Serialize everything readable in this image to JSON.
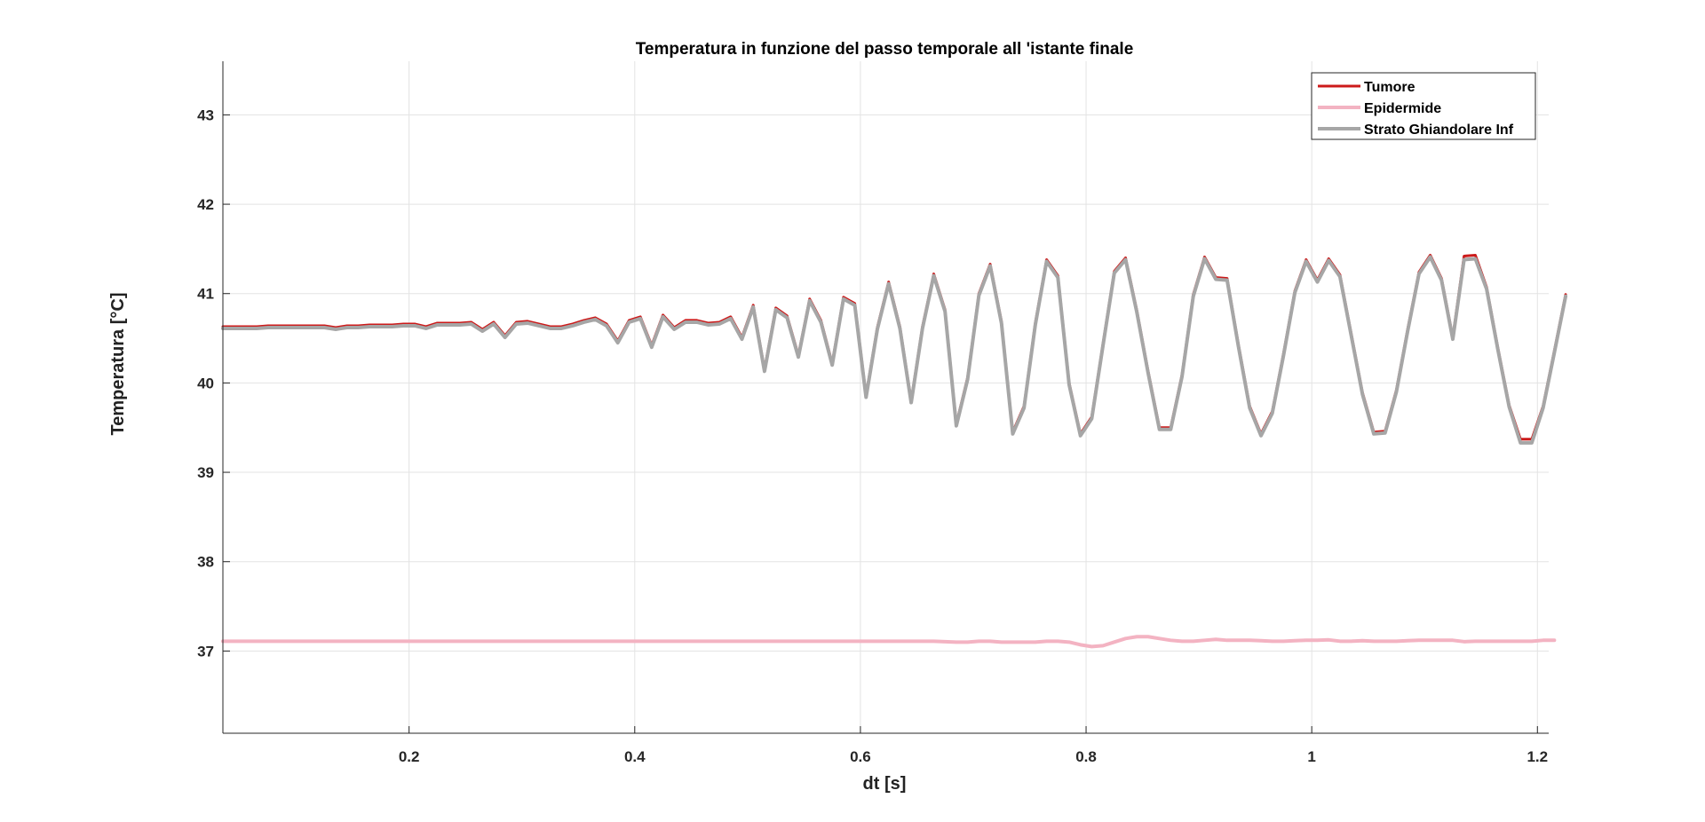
{
  "chart_data": {
    "type": "line",
    "title": "Temperatura in funzione del passo temporale all 'istante finale",
    "xlabel": "dt [s]",
    "ylabel": "Temperatura [°C]",
    "xlim": [
      0.035,
      1.21
    ],
    "ylim": [
      36.08,
      43.6
    ],
    "xticks": [
      0.2,
      0.4,
      0.6,
      0.8,
      1,
      1.2
    ],
    "xtick_labels": [
      "0.2",
      "0.4",
      "0.6",
      "0.8",
      "1",
      "1.2"
    ],
    "yticks": [
      37,
      38,
      39,
      40,
      41,
      42,
      43
    ],
    "ytick_labels": [
      "37",
      "38",
      "39",
      "40",
      "41",
      "42",
      "43"
    ],
    "grid": true,
    "legend_position": "top-right",
    "x_start": 0.035,
    "x_step": 0.01,
    "series": [
      {
        "name": "Tumore",
        "color": "#cc1a1a",
        "width": 3,
        "values": [
          40.63,
          40.63,
          40.63,
          40.63,
          40.64,
          40.64,
          40.64,
          40.64,
          40.64,
          40.64,
          40.62,
          40.64,
          40.64,
          40.65,
          40.65,
          40.65,
          40.66,
          40.66,
          40.63,
          40.67,
          40.67,
          40.67,
          40.68,
          40.6,
          40.68,
          40.53,
          40.68,
          40.69,
          40.66,
          40.63,
          40.63,
          40.66,
          40.7,
          40.73,
          40.66,
          40.47,
          40.7,
          40.74,
          40.42,
          40.76,
          40.62,
          40.7,
          40.7,
          40.67,
          40.68,
          40.74,
          40.51,
          40.87,
          40.15,
          40.84,
          40.75,
          40.31,
          40.94,
          40.7,
          40.22,
          40.96,
          40.89,
          39.86,
          40.62,
          41.13,
          40.63,
          39.8,
          40.63,
          41.22,
          40.82,
          39.54,
          40.06,
          41.0,
          41.33,
          40.69,
          39.45,
          39.74,
          40.67,
          41.38,
          41.2,
          40.0,
          39.43,
          39.62,
          40.44,
          41.25,
          41.4,
          40.81,
          40.13,
          39.5,
          39.5,
          40.09,
          40.99,
          41.41,
          41.18,
          41.17,
          40.43,
          39.74,
          39.43,
          39.68,
          40.33,
          41.03,
          41.38,
          41.15,
          41.39,
          41.21,
          40.55,
          39.89,
          39.45,
          39.46,
          39.92,
          40.6,
          41.24,
          41.43,
          41.17,
          40.51,
          41.42,
          41.43,
          41.07,
          40.39,
          39.75,
          39.37,
          39.37,
          39.74,
          40.36,
          40.99
        ]
      },
      {
        "name": "Epidermide",
        "color": "#f3b3c2",
        "width": 4,
        "values": [
          37.11,
          37.11,
          37.11,
          37.11,
          37.11,
          37.11,
          37.11,
          37.11,
          37.11,
          37.11,
          37.11,
          37.11,
          37.11,
          37.11,
          37.11,
          37.11,
          37.11,
          37.11,
          37.11,
          37.11,
          37.11,
          37.11,
          37.11,
          37.11,
          37.11,
          37.11,
          37.11,
          37.11,
          37.11,
          37.11,
          37.11,
          37.11,
          37.11,
          37.11,
          37.11,
          37.11,
          37.11,
          37.11,
          37.11,
          37.11,
          37.11,
          37.11,
          37.11,
          37.11,
          37.11,
          37.11,
          37.11,
          37.11,
          37.11,
          37.11,
          37.11,
          37.11,
          37.11,
          37.11,
          37.11,
          37.11,
          37.11,
          37.11,
          37.11,
          37.11,
          37.11,
          37.11,
          37.11,
          37.11,
          37.105,
          37.1,
          37.1,
          37.11,
          37.11,
          37.1,
          37.1,
          37.1,
          37.1,
          37.11,
          37.11,
          37.1,
          37.07,
          37.05,
          37.06,
          37.1,
          37.14,
          37.16,
          37.16,
          37.14,
          37.12,
          37.11,
          37.11,
          37.12,
          37.13,
          37.12,
          37.12,
          37.12,
          37.115,
          37.11,
          37.11,
          37.115,
          37.12,
          37.12,
          37.125,
          37.11,
          37.11,
          37.115,
          37.11,
          37.11,
          37.11,
          37.115,
          37.12,
          37.12,
          37.12,
          37.12,
          37.105,
          37.11,
          37.11,
          37.11,
          37.11,
          37.11,
          37.11,
          37.12,
          37.12
        ]
      },
      {
        "name": "Strato Ghiandolare Inf",
        "color": "#a6a6a6",
        "width": 4,
        "values": [
          40.61,
          40.61,
          40.61,
          40.61,
          40.62,
          40.62,
          40.62,
          40.62,
          40.62,
          40.62,
          40.6,
          40.62,
          40.62,
          40.63,
          40.63,
          40.63,
          40.64,
          40.64,
          40.61,
          40.65,
          40.65,
          40.65,
          40.66,
          40.58,
          40.66,
          40.51,
          40.66,
          40.67,
          40.64,
          40.61,
          40.61,
          40.64,
          40.68,
          40.71,
          40.64,
          40.45,
          40.68,
          40.72,
          40.4,
          40.74,
          40.6,
          40.68,
          40.68,
          40.65,
          40.66,
          40.72,
          40.49,
          40.85,
          40.13,
          40.82,
          40.73,
          40.29,
          40.92,
          40.68,
          40.2,
          40.94,
          40.87,
          39.84,
          40.6,
          41.11,
          40.61,
          39.78,
          40.61,
          41.2,
          40.8,
          39.52,
          40.04,
          40.98,
          41.31,
          40.67,
          39.43,
          39.72,
          40.65,
          41.36,
          41.18,
          39.98,
          39.41,
          39.6,
          40.42,
          41.23,
          41.38,
          40.79,
          40.11,
          39.48,
          39.48,
          40.07,
          40.97,
          41.39,
          41.16,
          41.15,
          40.41,
          39.72,
          39.41,
          39.66,
          40.31,
          41.01,
          41.36,
          41.13,
          41.37,
          41.19,
          40.53,
          39.87,
          39.43,
          39.44,
          39.9,
          40.58,
          41.22,
          41.41,
          41.15,
          40.49,
          41.38,
          41.39,
          41.05,
          40.37,
          39.73,
          39.33,
          39.33,
          39.72,
          40.34,
          40.97
        ]
      }
    ]
  }
}
